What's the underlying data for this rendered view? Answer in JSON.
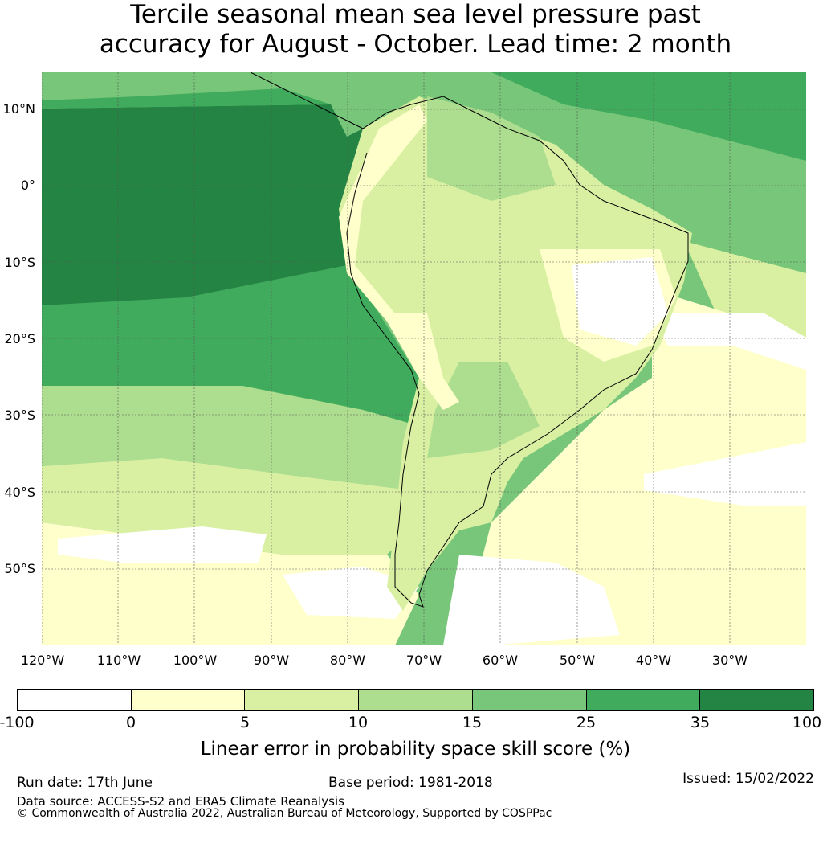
{
  "title": {
    "line1": "Tercile seasonal mean sea level pressure past",
    "line2": "accuracy for August - October. Lead time: 2 month"
  },
  "map": {
    "lat_labels": [
      "10°N",
      "0°",
      "10°S",
      "20°S",
      "30°S",
      "40°S",
      "50°S"
    ],
    "lon_labels": [
      "120°W",
      "110°W",
      "100°W",
      "90°W",
      "80°W",
      "70°W",
      "60°W",
      "50°W",
      "40°W",
      "30°W"
    ]
  },
  "colorbar": {
    "ticks": [
      "-100",
      "0",
      "5",
      "10",
      "15",
      "25",
      "35",
      "100"
    ],
    "colors": [
      "#ffffff",
      "#ffffcc",
      "#d9f0a3",
      "#addd8e",
      "#78c679",
      "#41ab5d",
      "#238443"
    ],
    "label": "Linear error in probability space skill score (%)"
  },
  "footer": {
    "run_date": "Run date: 17th June",
    "base_period": "Base period: 1981-2018",
    "issued": "Issued: 15/02/2022",
    "data_source": "Data source: ACCESS-S2 and ERA5 Climate Reanalysis",
    "copyright": "© Commonwealth of Australia 2022, Australian Bureau of Meteorology, Supported by COSPPac"
  }
}
